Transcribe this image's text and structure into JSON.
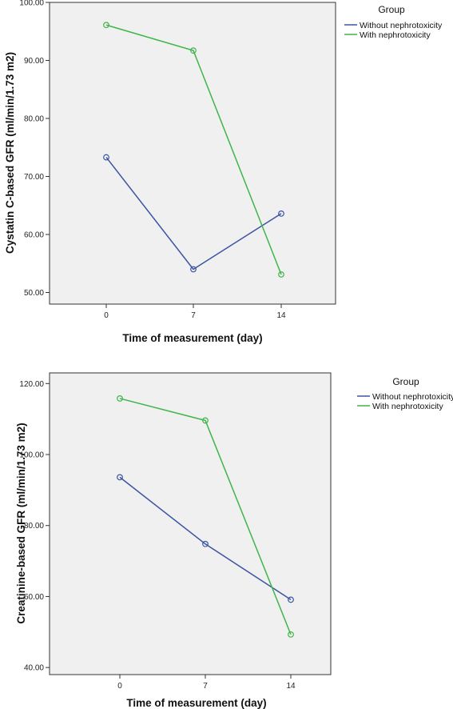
{
  "chart_data": [
    {
      "type": "line",
      "categories": [
        "0",
        "7",
        "14"
      ],
      "xlabel": "Time of measurement (day)",
      "ylabel": "Cystatin C-based GFR (ml/min/1.73 m2)",
      "ylim": [
        48,
        100
      ],
      "yticks": [
        "50.00",
        "60.00",
        "70.00",
        "80.00",
        "90.00",
        "100.00"
      ],
      "ytick_values": [
        50,
        60,
        70,
        80,
        90,
        100
      ],
      "legend": {
        "title": "Group",
        "placement": "right"
      },
      "series": [
        {
          "name": "Without nephrotoxicity",
          "color": "#3a54a4",
          "values": [
            73.3,
            54.0,
            63.6
          ]
        },
        {
          "name": "With nephrotoxicity",
          "color": "#3fb54a",
          "values": [
            96.1,
            91.7,
            53.1
          ]
        }
      ],
      "grid": false
    },
    {
      "type": "line",
      "categories": [
        "0",
        "7",
        "14"
      ],
      "xlabel": "Time of measurement (day)",
      "ylabel": "Creatinine-based GFR (ml/min/1.73 m2)",
      "ylim": [
        38,
        123
      ],
      "yticks": [
        "40.00",
        "60.00",
        "80.00",
        "100.00",
        "120.00"
      ],
      "ytick_values": [
        40,
        60,
        80,
        100,
        120
      ],
      "legend": {
        "title": "Group",
        "placement": "right"
      },
      "series": [
        {
          "name": "Without nephrotoxicity",
          "color": "#3a54a4",
          "values": [
            93.6,
            74.8,
            59.1
          ]
        },
        {
          "name": "With nephrotoxicity",
          "color": "#3fb54a",
          "values": [
            115.8,
            109.6,
            49.3
          ]
        }
      ],
      "grid": false
    }
  ]
}
